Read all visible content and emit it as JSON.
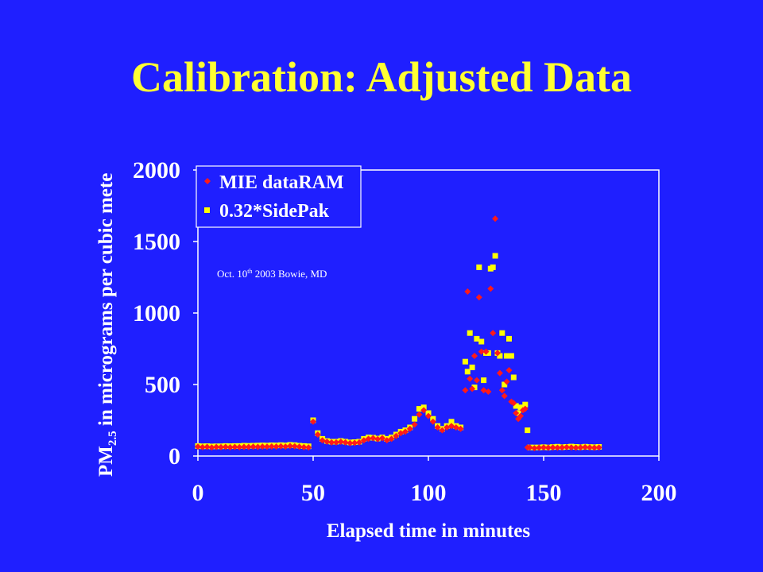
{
  "slide": {
    "title": "Calibration: Adjusted Data"
  },
  "chart_data": {
    "type": "scatter",
    "xlabel": "Elapsed time in minutes",
    "ylabel_main": "PM",
    "ylabel_sub": "2.5",
    "ylabel_rest": " in micrograms per cubic mete",
    "xlim": [
      0,
      200
    ],
    "ylim": [
      0,
      2000
    ],
    "x_ticks": [
      0,
      50,
      100,
      150,
      200
    ],
    "y_ticks": [
      0,
      500,
      1000,
      1500,
      2000
    ],
    "grid": false,
    "legend_position": "top-left",
    "annotation": {
      "text_before": "Oct. 10",
      "superscript": "th",
      "text_after": " 2003 Bowie, MD"
    },
    "colors": {
      "background": "#1f1fff",
      "plot_border": "#ffffff",
      "title": "#ffff33"
    },
    "series": [
      {
        "name": "MIE dataRAM",
        "marker": "diamond",
        "color": "#ff1a1a",
        "x": [
          0,
          2,
          4,
          6,
          8,
          10,
          12,
          14,
          16,
          18,
          20,
          22,
          24,
          26,
          28,
          30,
          32,
          34,
          36,
          38,
          40,
          42,
          44,
          46,
          48,
          50,
          52,
          54,
          56,
          58,
          60,
          62,
          64,
          66,
          68,
          70,
          72,
          74,
          76,
          78,
          80,
          82,
          84,
          86,
          88,
          90,
          92,
          94,
          96,
          98,
          100,
          102,
          104,
          106,
          108,
          110,
          112,
          114,
          116,
          117,
          118,
          119,
          120,
          121,
          122,
          123,
          124,
          125,
          126,
          127,
          128,
          129,
          130,
          131,
          132,
          133,
          134,
          135,
          136,
          137,
          138,
          139,
          140,
          141,
          142,
          143,
          144,
          146,
          148,
          150,
          152,
          154,
          156,
          158,
          160,
          162,
          164,
          166,
          168,
          170,
          172,
          174
        ],
        "y": [
          65,
          62,
          64,
          60,
          63,
          62,
          64,
          61,
          63,
          62,
          64,
          63,
          65,
          64,
          66,
          65,
          67,
          66,
          68,
          66,
          70,
          68,
          65,
          62,
          60,
          240,
          150,
          110,
          100,
          95,
          95,
          100,
          95,
          90,
          92,
          95,
          110,
          120,
          125,
          118,
          125,
          110,
          120,
          140,
          160,
          170,
          190,
          220,
          290,
          320,
          280,
          240,
          200,
          180,
          200,
          210,
          200,
          190,
          460,
          1150,
          540,
          470,
          700,
          530,
          1110,
          730,
          460,
          730,
          450,
          1170,
          860,
          1660,
          720,
          580,
          460,
          420,
          520,
          600,
          380,
          370,
          300,
          260,
          280,
          320,
          330,
          60,
          60,
          55,
          58,
          60,
          58,
          60,
          58,
          60,
          62,
          60,
          58,
          60,
          62,
          60,
          58,
          60
        ]
      },
      {
        "name": "0.32*SidePak",
        "marker": "square",
        "color": "#ffff00",
        "x": [
          0,
          2,
          4,
          6,
          8,
          10,
          12,
          14,
          16,
          18,
          20,
          22,
          24,
          26,
          28,
          30,
          32,
          34,
          36,
          38,
          40,
          42,
          44,
          46,
          48,
          50,
          52,
          54,
          56,
          58,
          60,
          62,
          64,
          66,
          68,
          70,
          72,
          74,
          76,
          78,
          80,
          82,
          84,
          86,
          88,
          90,
          92,
          94,
          96,
          98,
          100,
          102,
          104,
          106,
          108,
          110,
          112,
          114,
          116,
          117,
          118,
          119,
          120,
          121,
          122,
          123,
          124,
          125,
          126,
          127,
          128,
          129,
          130,
          131,
          132,
          133,
          134,
          135,
          136,
          137,
          138,
          139,
          140,
          141,
          142,
          143,
          144,
          146,
          148,
          150,
          152,
          154,
          156,
          158,
          160,
          162,
          164,
          166,
          168,
          170,
          172,
          174
        ],
        "y": [
          70,
          68,
          69,
          67,
          68,
          68,
          70,
          69,
          70,
          70,
          72,
          71,
          72,
          73,
          74,
          73,
          75,
          74,
          76,
          74,
          78,
          76,
          72,
          70,
          68,
          250,
          160,
          120,
          105,
          100,
          100,
          105,
          100,
          95,
          97,
          100,
          120,
          130,
          128,
          122,
          130,
          120,
          130,
          150,
          170,
          180,
          200,
          260,
          330,
          340,
          300,
          260,
          210,
          190,
          210,
          240,
          210,
          200,
          660,
          590,
          860,
          620,
          480,
          820,
          1320,
          800,
          530,
          720,
          720,
          1310,
          1320,
          1400,
          720,
          700,
          860,
          500,
          700,
          820,
          700,
          550,
          350,
          300,
          340,
          330,
          360,
          180,
          60,
          60,
          60,
          62,
          60,
          63,
          65,
          62,
          64,
          66,
          64,
          62,
          65,
          63,
          62,
          64
        ]
      }
    ]
  }
}
